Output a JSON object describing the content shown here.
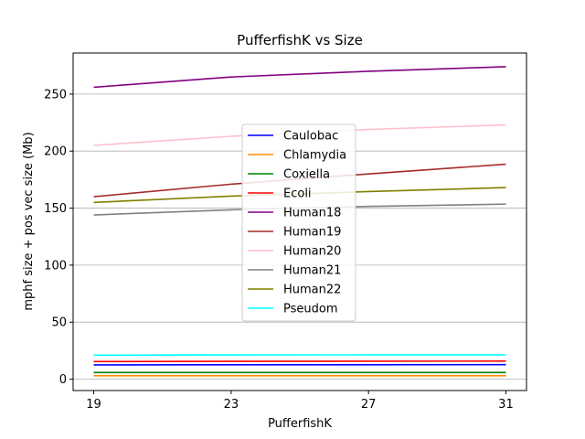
{
  "chart_data": {
    "type": "line",
    "title": "PufferfishK vs Size",
    "xlabel": "PufferfishK",
    "ylabel": "mphf size + pos vec size (Mb)",
    "x": [
      19,
      23,
      27,
      31
    ],
    "xticks": [
      19,
      23,
      27,
      31
    ],
    "yticks": [
      0,
      50,
      100,
      150,
      200,
      250
    ],
    "xlim": [
      18.4,
      31.6
    ],
    "ylim": [
      -10,
      286
    ],
    "grid": "y",
    "legend_position": "center",
    "series": [
      {
        "name": "Caulobac",
        "color": "#0000ff",
        "values": [
          12.5,
          12.6,
          12.6,
          12.7
        ]
      },
      {
        "name": "Chlamydia",
        "color": "#ff8c00",
        "values": [
          3.0,
          3.0,
          3.0,
          3.0
        ]
      },
      {
        "name": "Coxiella",
        "color": "#008000",
        "values": [
          5.8,
          5.8,
          5.8,
          5.8
        ]
      },
      {
        "name": "Ecoli",
        "color": "#ff0000",
        "values": [
          15.4,
          15.6,
          15.7,
          15.8
        ]
      },
      {
        "name": "Human18",
        "color": "#800080",
        "values": [
          256,
          265,
          270,
          274
        ]
      },
      {
        "name": "Human19",
        "color": "#a52a2a",
        "values": [
          160,
          171,
          180,
          188.5
        ]
      },
      {
        "name": "Human20",
        "color": "#ffc0cb",
        "values": [
          205,
          213,
          219,
          223
        ]
      },
      {
        "name": "Human21",
        "color": "#808080",
        "values": [
          144,
          148.5,
          151.5,
          153.5
        ]
      },
      {
        "name": "Human22",
        "color": "#808000",
        "values": [
          155,
          160.5,
          164.5,
          168
        ]
      },
      {
        "name": "Pseudom",
        "color": "#00ffff",
        "values": [
          21,
          21.2,
          21.3,
          21.3
        ]
      }
    ]
  }
}
